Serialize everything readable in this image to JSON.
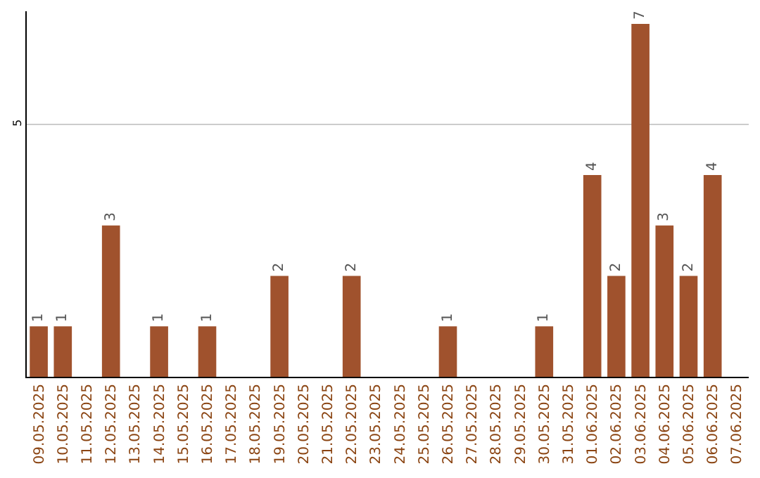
{
  "chart_data": {
    "type": "bar",
    "categories": [
      "09.05.2025",
      "10.05.2025",
      "11.05.2025",
      "12.05.2025",
      "13.05.2025",
      "14.05.2025",
      "15.05.2025",
      "16.05.2025",
      "17.05.2025",
      "18.05.2025",
      "19.05.2025",
      "20.05.2025",
      "21.05.2025",
      "22.05.2025",
      "23.05.2025",
      "24.05.2025",
      "25.05.2025",
      "26.05.2025",
      "27.05.2025",
      "28.05.2025",
      "29.05.2025",
      "30.05.2025",
      "31.05.2025",
      "01.06.2025",
      "02.06.2025",
      "03.06.2025",
      "04.06.2025",
      "05.06.2025",
      "06.06.2025",
      "07.06.2025"
    ],
    "values": [
      1,
      1,
      0,
      3,
      0,
      1,
      0,
      1,
      0,
      0,
      2,
      0,
      0,
      2,
      0,
      0,
      0,
      1,
      0,
      0,
      0,
      1,
      0,
      4,
      2,
      7,
      3,
      2,
      4,
      0
    ],
    "value_labels": [
      "1",
      "1",
      null,
      "3",
      null,
      "1",
      null,
      "1",
      null,
      null,
      "2",
      null,
      null,
      "2",
      null,
      null,
      null,
      "1",
      null,
      null,
      null,
      "1",
      null,
      "4",
      "2",
      "7",
      "3",
      "2",
      "4",
      null
    ],
    "color": "#a0522d",
    "ylim": [
      0,
      7.25
    ],
    "yticks": [
      5
    ],
    "grid": "y",
    "legend": false
  }
}
